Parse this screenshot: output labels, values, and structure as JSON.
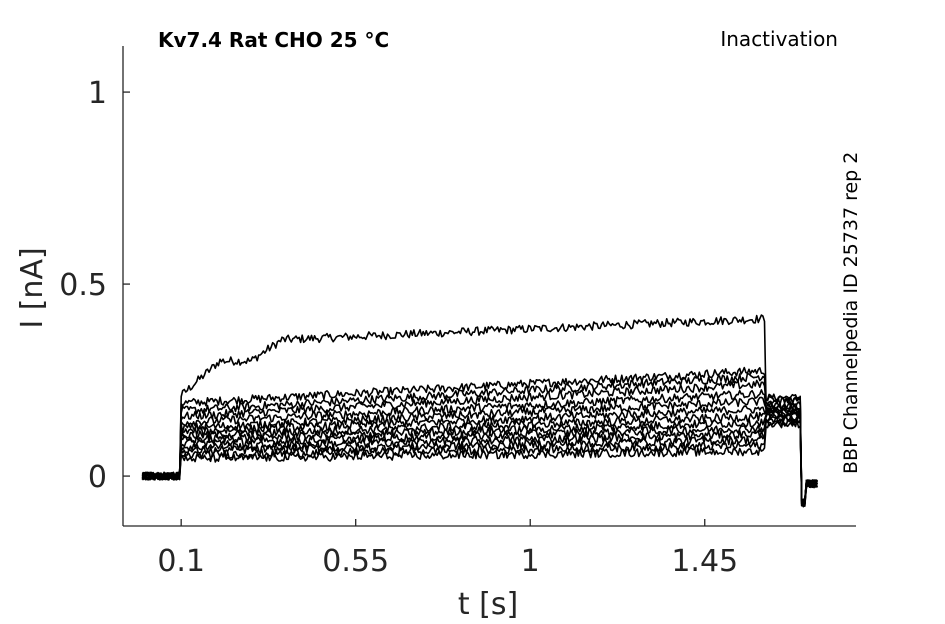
{
  "chart_data": {
    "type": "line",
    "title": "Kv7.4  Rat  CHO  25 °C",
    "subtitle": "Inactivation",
    "side_label": "BBP Channelpedia ID 25737 rep 2",
    "xlabel": "t [s]",
    "ylabel": "I [nA]",
    "xlim": [
      -0.05,
      1.84
    ],
    "ylim": [
      -0.13,
      1.12
    ],
    "x_ticks": [
      0.1,
      0.55,
      1,
      1.45
    ],
    "x_tick_labels": [
      "0.1",
      "0.55",
      "1",
      "1.45"
    ],
    "y_ticks": [
      0,
      0.5,
      1
    ],
    "y_tick_labels": [
      "0",
      "0.5",
      "1"
    ],
    "grid": false,
    "line_color": "#000000",
    "protocol": {
      "baseline_start": 0.0,
      "step_start": 0.1,
      "step_end": 1.605,
      "tail_end": 1.7,
      "record_end": 1.74
    },
    "series": [
      {
        "start": 0.21,
        "end": 0.41,
        "tail": 0.205
      },
      {
        "start": 0.19,
        "end": 0.275,
        "tail": 0.2
      },
      {
        "start": 0.17,
        "end": 0.26,
        "tail": 0.195
      },
      {
        "start": 0.155,
        "end": 0.24,
        "tail": 0.185
      },
      {
        "start": 0.14,
        "end": 0.215,
        "tail": 0.18
      },
      {
        "start": 0.125,
        "end": 0.195,
        "tail": 0.175
      },
      {
        "start": 0.115,
        "end": 0.175,
        "tail": 0.17
      },
      {
        "start": 0.105,
        "end": 0.155,
        "tail": 0.165
      },
      {
        "start": 0.095,
        "end": 0.14,
        "tail": 0.16
      },
      {
        "start": 0.085,
        "end": 0.125,
        "tail": 0.155
      },
      {
        "start": 0.075,
        "end": 0.11,
        "tail": 0.15
      },
      {
        "start": 0.065,
        "end": 0.095,
        "tail": 0.145
      },
      {
        "start": 0.055,
        "end": 0.08,
        "tail": 0.14
      },
      {
        "start": 0.045,
        "end": 0.065,
        "tail": 0.135
      }
    ]
  }
}
